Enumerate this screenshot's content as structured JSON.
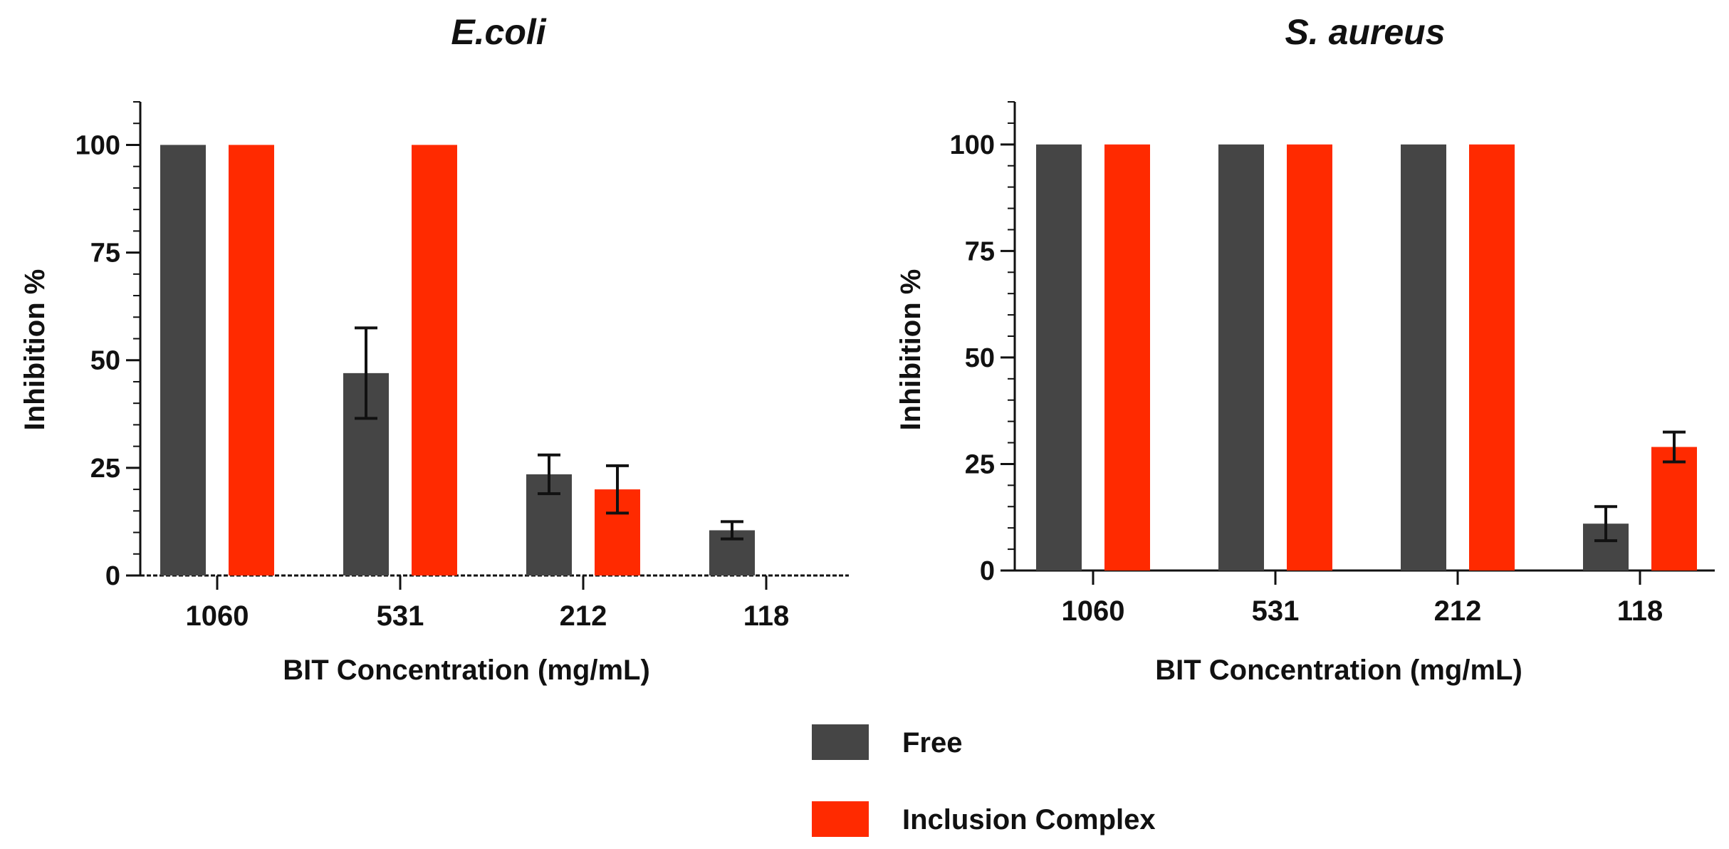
{
  "legend": {
    "items": [
      {
        "label": "Free",
        "color": "#454545"
      },
      {
        "label": "Inclusion Complex",
        "color": "#ff2a00"
      }
    ]
  },
  "chart_data": [
    {
      "type": "bar",
      "title": "E.coli",
      "xlabel": "BIT Concentration (mg/mL)",
      "ylabel": "Inhibition %",
      "ylim": [
        0,
        110
      ],
      "yticks": [
        0,
        25,
        50,
        75,
        100
      ],
      "ytick_labels": [
        "0",
        "25",
        "50",
        "75",
        "100"
      ],
      "grid": false,
      "legend_position": "bottom-center",
      "categories": [
        "1060",
        "531",
        "212",
        "118"
      ],
      "series": [
        {
          "name": "Free",
          "color": "#454545",
          "values": [
            100,
            47,
            23.5,
            10.5
          ],
          "errors": [
            0,
            10.5,
            4.5,
            2
          ]
        },
        {
          "name": "Inclusion Complex",
          "color": "#ff2a00",
          "values": [
            100,
            100,
            20,
            0
          ],
          "errors": [
            0,
            0,
            5.5,
            0
          ]
        }
      ]
    },
    {
      "type": "bar",
      "title": "S. aureus",
      "xlabel": "BIT Concentration (mg/mL)",
      "ylabel": "Inhibition %",
      "ylim": [
        0,
        110
      ],
      "yticks": [
        0,
        25,
        50,
        75,
        100
      ],
      "ytick_labels": [
        "0",
        "25",
        "50",
        "75",
        "100"
      ],
      "grid": false,
      "legend_position": "bottom-center",
      "categories": [
        "1060",
        "531",
        "212",
        "118"
      ],
      "series": [
        {
          "name": "Free",
          "color": "#454545",
          "values": [
            100,
            100,
            100,
            11
          ],
          "errors": [
            0,
            0,
            0,
            4
          ]
        },
        {
          "name": "Inclusion Complex",
          "color": "#ff2a00",
          "values": [
            100,
            100,
            100,
            29
          ],
          "errors": [
            0,
            0,
            0,
            3.5
          ]
        }
      ]
    }
  ]
}
